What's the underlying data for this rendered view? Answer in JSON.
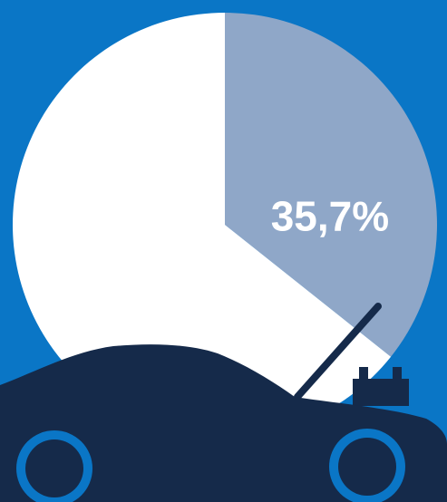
{
  "chart_data": {
    "type": "pie",
    "values": [
      35.7,
      64.3
    ],
    "value_labels": [
      "35,7%",
      null
    ],
    "colors": [
      "#8fa7c8",
      "#ffffff"
    ]
  }
}
